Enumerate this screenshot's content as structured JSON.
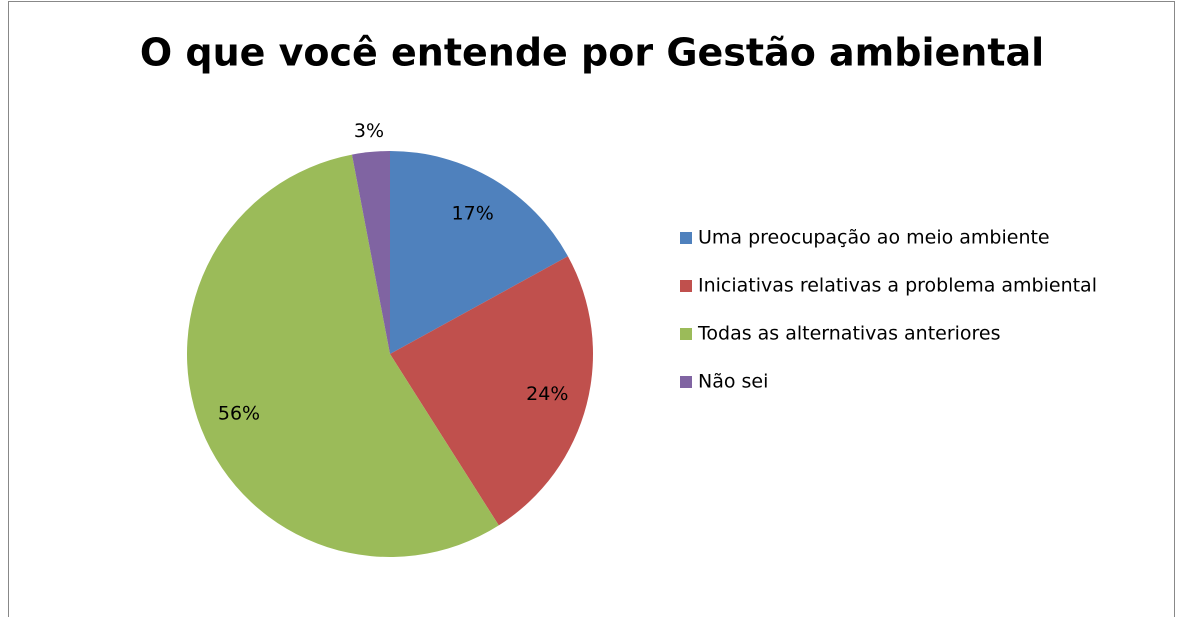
{
  "chart_data": {
    "type": "pie",
    "title": "O que você entende por Gestão ambiental",
    "categories": [
      "Uma preocupação ao meio ambiente",
      "Iniciativas relativas a problema ambiental",
      "Todas as alternativas anteriores",
      "Não sei"
    ],
    "values": [
      17,
      24,
      56,
      3
    ],
    "value_labels": [
      "17%",
      "24%",
      "56%",
      "3%"
    ],
    "colors": [
      "#4f81bd",
      "#c0504d",
      "#9bbb59",
      "#8064a2"
    ],
    "legend": "right"
  }
}
